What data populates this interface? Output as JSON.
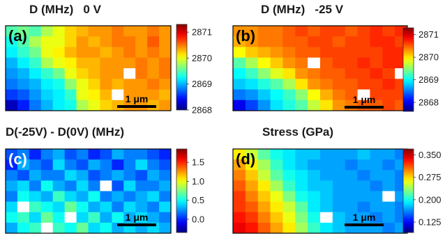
{
  "figure": {
    "panels": [
      {
        "id": "a",
        "title": "D (MHz)   0 V",
        "label": "(a)",
        "scalebar": "1 μm",
        "colorbar": {
          "min": 2868,
          "max": 2871.3,
          "ticks": [
            "2871",
            "2870",
            "2869",
            "2868"
          ],
          "tick_values": [
            2871,
            2870,
            2869,
            2868
          ]
        },
        "rows": 8,
        "cols": 14,
        "grid": [
          [
            2869.5,
            2869.6,
            2869.5,
            2869.8,
            2870.0,
            2870.2,
            2870.3,
            2870.4,
            2870.4,
            2870.5,
            2870.4,
            2870.4,
            2870.5,
            2870.4
          ],
          [
            2869.3,
            2869.5,
            2869.8,
            2870.0,
            2870.0,
            2870.2,
            2870.4,
            2870.3,
            2870.4,
            2870.5,
            2870.5,
            2870.4,
            2870.6,
            2870.4
          ],
          [
            2869.2,
            2869.4,
            2869.6,
            2870.0,
            2870.1,
            2870.3,
            2870.4,
            2870.4,
            2870.3,
            2870.4,
            2870.5,
            2870.4,
            2870.5,
            2870.4
          ],
          [
            2869.0,
            2869.2,
            2869.4,
            2869.8,
            2870.0,
            2870.1,
            2870.3,
            2870.3,
            2870.4,
            2870.4,
            2870.4,
            2870.5,
            2870.4,
            2870.5
          ],
          [
            2868.9,
            2869.0,
            2869.2,
            2869.4,
            2869.6,
            2870.0,
            2870.2,
            2870.3,
            2870.4,
            2870.4,
            2870.4,
            2870.5,
            2870.4,
            2870.5
          ],
          [
            2868.8,
            2868.9,
            2869.0,
            2869.2,
            2869.3,
            2869.7,
            2870.0,
            2870.2,
            2870.4,
            2870.3,
            2870.4,
            2870.4,
            2870.5,
            2870.4
          ],
          [
            2868.6,
            2868.7,
            2868.9,
            2869.1,
            2869.2,
            2869.4,
            2870.0,
            2870.1,
            2870.3,
            2870.4,
            2870.4,
            2870.4,
            2870.4,
            2870.3
          ],
          [
            2868.2,
            2868.5,
            2868.8,
            2869.0,
            2869.2,
            2869.3,
            2869.8,
            2870.0,
            2870.2,
            2870.3,
            2870.4,
            2870.4,
            2870.3,
            2870.4
          ]
        ],
        "white_cells": [
          [
            4,
            10
          ],
          [
            6,
            9
          ]
        ]
      },
      {
        "id": "b",
        "title": "D (MHz)   -25 V",
        "label": "(b)",
        "scalebar": "1 μm",
        "colorbar": {
          "min": 2867.6,
          "max": 2871.3,
          "ticks": [
            "2871",
            "2870",
            "2869",
            "2868"
          ],
          "tick_values": [
            2871,
            2870,
            2869,
            2868
          ]
        },
        "rows": 8,
        "cols": 14,
        "grid": [
          [
            2870.3,
            2870.3,
            2870.4,
            2870.4,
            2870.5,
            2870.6,
            2870.5,
            2870.6,
            2870.6,
            2870.5,
            2870.6,
            2870.7,
            2870.6,
            2870.7
          ],
          [
            2870.2,
            2870.3,
            2870.4,
            2870.4,
            2870.5,
            2870.5,
            2870.6,
            2870.6,
            2870.5,
            2870.6,
            2870.6,
            2870.7,
            2870.7,
            2870.6
          ],
          [
            2869.9,
            2870.1,
            2870.2,
            2870.3,
            2870.4,
            2870.5,
            2870.5,
            2870.6,
            2870.6,
            2870.6,
            2870.6,
            2870.6,
            2870.7,
            2870.7
          ],
          [
            2869.3,
            2869.6,
            2869.9,
            2870.1,
            2870.3,
            2870.4,
            2870.5,
            2870.5,
            2870.6,
            2870.6,
            2870.7,
            2870.6,
            2870.7,
            2870.7
          ],
          [
            2869.0,
            2869.2,
            2869.5,
            2869.8,
            2870.0,
            2870.3,
            2870.4,
            2870.5,
            2870.5,
            2870.6,
            2870.6,
            2870.7,
            2870.6,
            2870.7
          ],
          [
            2868.8,
            2868.9,
            2869.1,
            2869.3,
            2869.6,
            2870.0,
            2870.3,
            2870.4,
            2870.5,
            2870.5,
            2870.6,
            2870.6,
            2870.7,
            2870.6
          ],
          [
            2868.5,
            2868.6,
            2868.8,
            2869.0,
            2869.2,
            2869.5,
            2869.9,
            2870.2,
            2870.4,
            2870.5,
            2870.5,
            2870.6,
            2870.6,
            2870.6
          ],
          [
            2868.0,
            2868.3,
            2868.6,
            2868.9,
            2869.1,
            2869.3,
            2869.7,
            2870.0,
            2870.3,
            2870.4,
            2870.5,
            2870.5,
            2870.6,
            2870.5
          ]
        ],
        "white_cells": [
          [
            3,
            6
          ],
          [
            6,
            10
          ],
          [
            4,
            13
          ]
        ]
      },
      {
        "id": "c",
        "title": "D(-25V) - D(0V) (MHz)",
        "label": "(c)",
        "scalebar": "1 μm",
        "colorbar": {
          "min": -0.35,
          "max": 1.85,
          "ticks": [
            "1.5",
            "1.0",
            "0.5",
            "0.0"
          ],
          "tick_values": [
            1.5,
            1.0,
            0.5,
            0.0
          ]
        },
        "rows": 8,
        "cols": 14,
        "grid": [
          [
            0.1,
            0.2,
            0.0,
            0.2,
            0.3,
            0.1,
            0.2,
            0.0,
            0.1,
            0.3,
            0.2,
            0.2,
            0.1,
            0.0
          ],
          [
            0.0,
            0.3,
            0.2,
            0.1,
            0.4,
            0.2,
            0.1,
            0.3,
            0.2,
            0.0,
            0.2,
            0.4,
            0.2,
            0.1
          ],
          [
            0.2,
            0.1,
            0.3,
            0.2,
            0.2,
            0.4,
            0.3,
            0.1,
            0.2,
            0.3,
            0.2,
            0.1,
            0.3,
            0.2
          ],
          [
            0.3,
            0.4,
            0.2,
            0.5,
            0.3,
            0.2,
            0.4,
            0.2,
            0.3,
            0.1,
            0.4,
            0.2,
            0.2,
            0.3
          ],
          [
            0.2,
            0.5,
            0.4,
            0.3,
            0.6,
            0.4,
            0.3,
            0.5,
            0.2,
            0.3,
            0.2,
            0.3,
            0.4,
            0.2
          ],
          [
            0.4,
            0.3,
            0.6,
            0.5,
            0.4,
            0.7,
            0.5,
            0.3,
            0.4,
            0.2,
            0.4,
            0.3,
            0.2,
            0.4
          ],
          [
            0.5,
            0.6,
            0.4,
            0.7,
            0.5,
            0.6,
            0.4,
            0.6,
            0.3,
            0.5,
            0.3,
            0.4,
            0.3,
            0.2
          ],
          [
            0.3,
            0.5,
            0.6,
            0.4,
            0.6,
            0.5,
            0.7,
            0.4,
            0.5,
            0.3,
            0.4,
            0.3,
            0.4,
            0.3
          ]
        ],
        "white_cells": [
          [
            5,
            1
          ],
          [
            6,
            5
          ],
          [
            7,
            3
          ],
          [
            3,
            8
          ]
        ]
      },
      {
        "id": "d",
        "title": "Stress (GPa)",
        "label": "(d)",
        "scalebar": "1 μm",
        "colorbar": {
          "min": 0.09,
          "max": 0.37,
          "ticks": [
            "0.350",
            "0.275",
            "0.200",
            "0.125"
          ],
          "tick_values": [
            0.35,
            0.275,
            0.2,
            0.125
          ]
        },
        "rows": 8,
        "cols": 14,
        "grid": [
          [
            0.27,
            0.25,
            0.22,
            0.2,
            0.19,
            0.18,
            0.18,
            0.17,
            0.17,
            0.17,
            0.18,
            0.17,
            0.17,
            0.16
          ],
          [
            0.29,
            0.27,
            0.24,
            0.21,
            0.19,
            0.18,
            0.17,
            0.17,
            0.17,
            0.16,
            0.17,
            0.17,
            0.16,
            0.17
          ],
          [
            0.3,
            0.28,
            0.25,
            0.22,
            0.2,
            0.19,
            0.18,
            0.17,
            0.17,
            0.17,
            0.16,
            0.17,
            0.17,
            0.16
          ],
          [
            0.31,
            0.29,
            0.27,
            0.24,
            0.21,
            0.19,
            0.18,
            0.18,
            0.17,
            0.17,
            0.17,
            0.16,
            0.17,
            0.16
          ],
          [
            0.32,
            0.3,
            0.28,
            0.26,
            0.23,
            0.2,
            0.19,
            0.18,
            0.17,
            0.17,
            0.17,
            0.17,
            0.16,
            0.17
          ],
          [
            0.32,
            0.31,
            0.29,
            0.27,
            0.25,
            0.22,
            0.19,
            0.18,
            0.17,
            0.17,
            0.16,
            0.17,
            0.17,
            0.16
          ],
          [
            0.33,
            0.32,
            0.3,
            0.28,
            0.26,
            0.23,
            0.2,
            0.19,
            0.18,
            0.17,
            0.17,
            0.16,
            0.17,
            0.16
          ],
          [
            0.34,
            0.33,
            0.31,
            0.29,
            0.27,
            0.24,
            0.21,
            0.19,
            0.18,
            0.17,
            0.17,
            0.17,
            0.16,
            0.17
          ]
        ],
        "white_cells": [
          [
            6,
            7
          ],
          [
            4,
            12
          ]
        ]
      }
    ]
  },
  "colors": {
    "panel_label_dark": "#000000",
    "panel_label_light": "#ffffff",
    "scalebar": "#000000"
  }
}
